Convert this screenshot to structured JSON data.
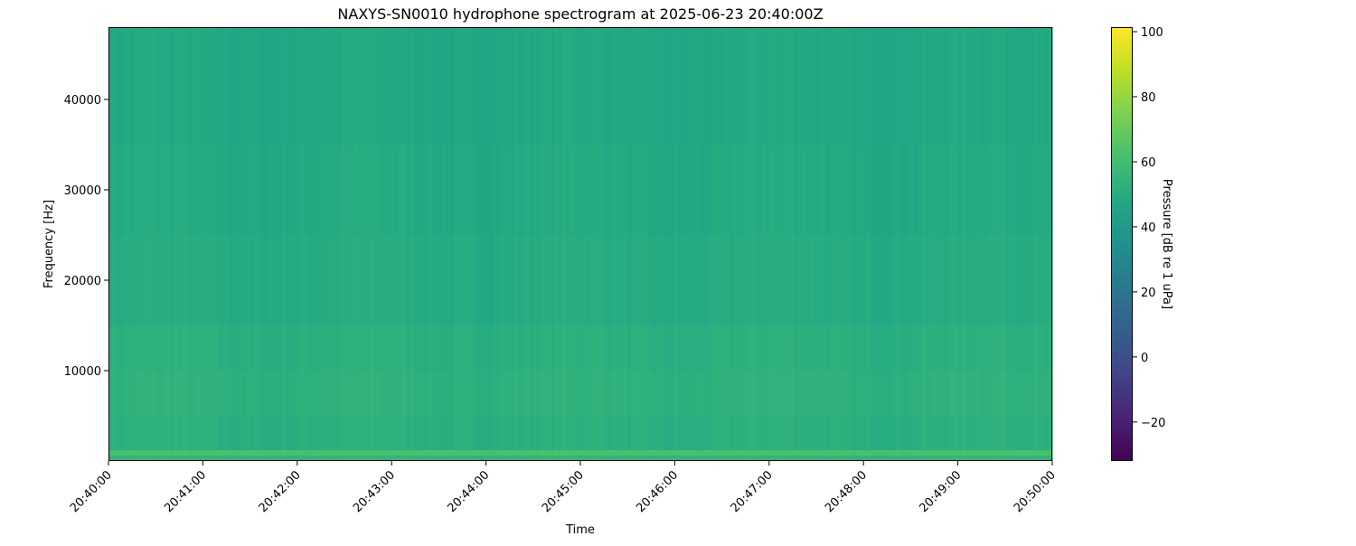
{
  "chart_data": {
    "type": "heatmap",
    "title": "NAXYS-SN0010 hydrophone spectrogram at 2025-06-23 20:40:00Z",
    "xlabel": "Time",
    "ylabel": "Frequency [Hz]",
    "colorbar_label": "Pressure [dB re 1 uPa]",
    "colormap": "viridis",
    "x_ticks": [
      "20:40:00",
      "20:41:00",
      "20:42:00",
      "20:43:00",
      "20:44:00",
      "20:45:00",
      "20:46:00",
      "20:47:00",
      "20:48:00",
      "20:49:00",
      "20:50:00"
    ],
    "xlim": [
      "20:40:00",
      "20:50:00"
    ],
    "y_ticks": [
      10000,
      20000,
      30000,
      40000
    ],
    "ylim": [
      0,
      48000
    ],
    "colorbar_ticks": [
      -20,
      0,
      20,
      40,
      60,
      80,
      100
    ],
    "clim": [
      -32,
      101.4
    ],
    "frequency_bands_hz": [
      [
        0,
        600
      ],
      [
        600,
        1200
      ],
      [
        1200,
        5000
      ],
      [
        5000,
        10000
      ],
      [
        10000,
        15000
      ],
      [
        15000,
        25000
      ],
      [
        25000,
        35000
      ],
      [
        35000,
        48000
      ]
    ],
    "band_levels_db": [
      55,
      62,
      52,
      53,
      52,
      50,
      49,
      48
    ],
    "grid": false
  }
}
